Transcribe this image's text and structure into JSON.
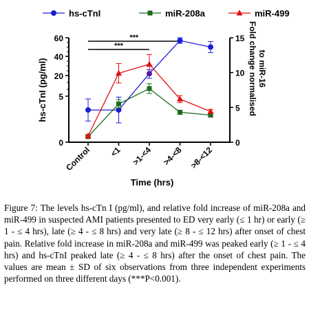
{
  "chart_data": {
    "type": "line",
    "categories": [
      "Control",
      "<1",
      ">1-<4",
      ">4-<8",
      ">8-<12"
    ],
    "xlabel": "Time (hrs)",
    "ylabel": "hs-cTnI (pg/ml)",
    "y2label_line1": "Fold change normalised",
    "y2label_line2": "to miR-16",
    "y_ticks": [
      "0",
      "5",
      "20",
      "40",
      "60"
    ],
    "y2_ticks": [
      "0",
      "5",
      "10",
      "15"
    ],
    "y2lim": [
      0,
      15
    ],
    "legend": "top",
    "series": [
      {
        "name": "hs-cTnI",
        "axis": "left",
        "color": "#1c1cd6",
        "marker": "circle",
        "values": [
          3.5,
          3.5,
          22,
          57,
          50
        ],
        "err": [
          1.2,
          1.4,
          4,
          3,
          6
        ]
      },
      {
        "name": "miR-208a",
        "axis": "right",
        "color": "#1a6b1a",
        "marker": "square",
        "values": [
          0.8,
          5.5,
          7.7,
          4.3,
          3.9
        ],
        "err": [
          0.2,
          0.6,
          0.7,
          0.3,
          0.3
        ]
      },
      {
        "name": "miR-499",
        "axis": "right",
        "color": "#e01010",
        "marker": "triangle",
        "values": [
          0.9,
          9.9,
          11.2,
          6.2,
          4.4
        ],
        "err": [
          0.2,
          1.4,
          1.4,
          0.5,
          0.3
        ]
      }
    ],
    "significance": [
      {
        "label": "***",
        "from": 0,
        "to": 3
      },
      {
        "label": "***",
        "from": 0,
        "to": 2
      }
    ]
  },
  "caption": {
    "label": "Figure 7:",
    "text": "The levels hs-cTn I (pg/ml), and relative fold increase of miR-208a and miR-499 in suspected AMI patients presented to ED very early (≤ 1 hr) or early (≥ 1 - ≤ 4 hrs), late (≥ 4 - ≤ 8 hrs) and very late (≥ 8 - ≤ 12 hrs) after onset of chest pain. Relative fold increase in miR-208a and miR-499 was peaked early (≥ 1 - ≤ 4 hrs) and hs-cTnI peaked late (≥ 4 - ≤ 8 hrs) after the onset of chest pain. The values are mean ± SD of six observations from three independent experiments performed on three different days (***P<0.001)."
  }
}
